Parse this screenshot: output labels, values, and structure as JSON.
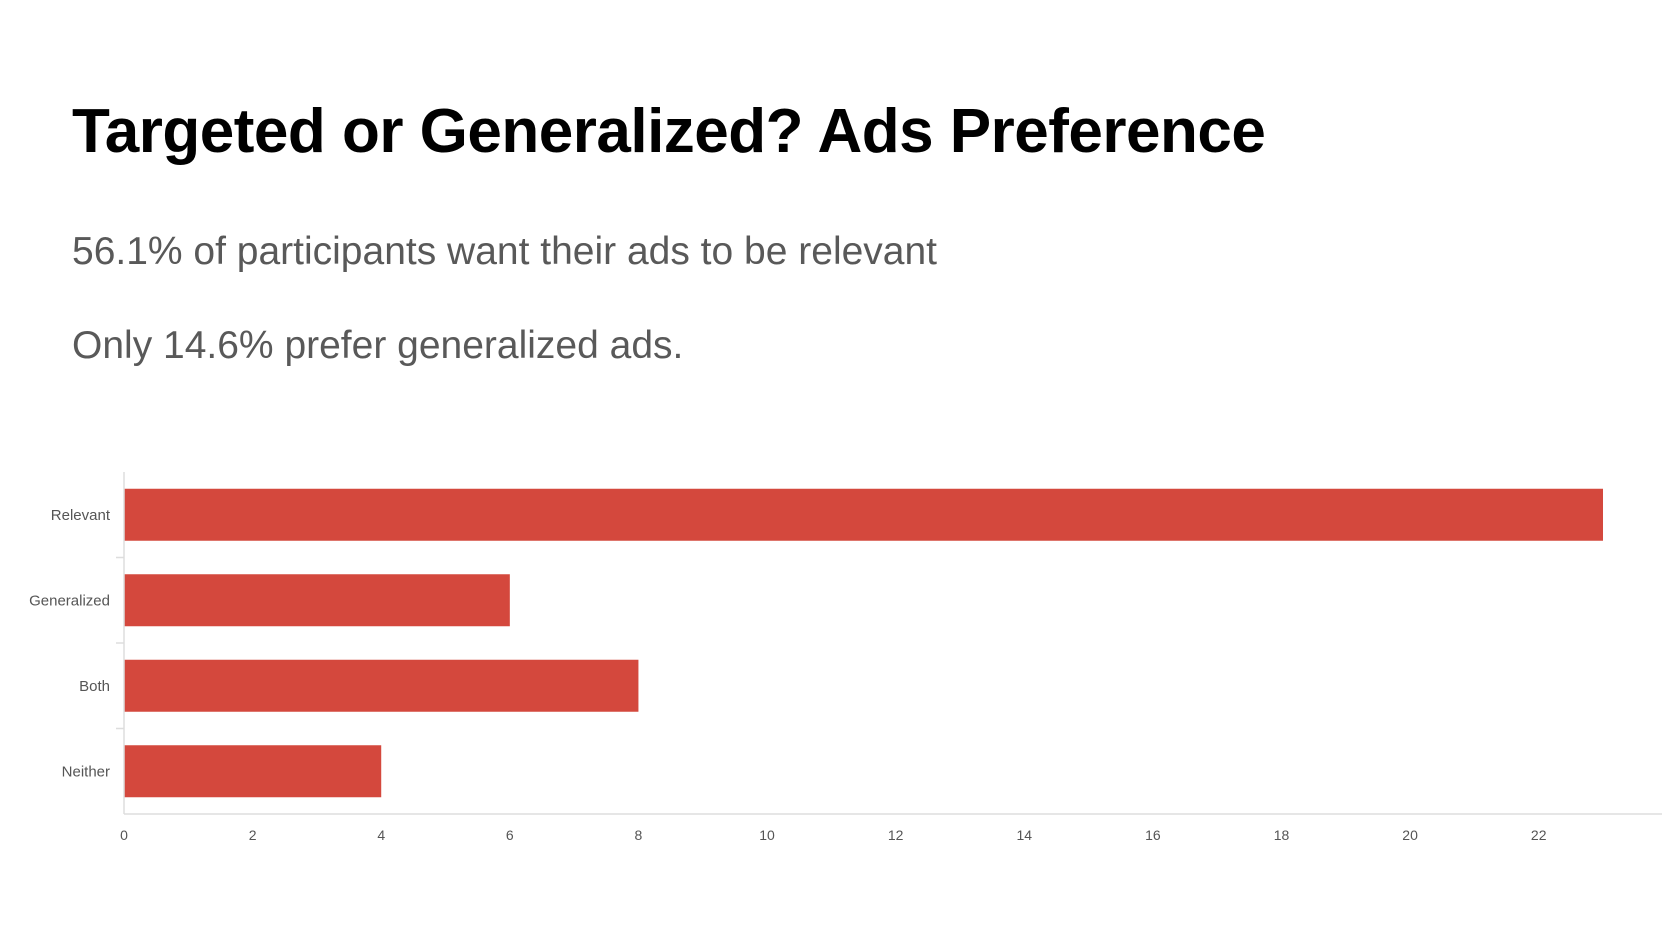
{
  "slide": {
    "title": "Targeted or Generalized? Ads Preference",
    "bullets": [
      "56.1% of participants want their ads to be relevant",
      "Only 14.6% prefer generalized ads."
    ]
  },
  "chart_data": {
    "type": "bar",
    "orientation": "horizontal",
    "categories": [
      "Relevant",
      "Generalized",
      "Both",
      "Neither"
    ],
    "values": [
      23,
      6,
      8,
      4
    ],
    "xlim": [
      0,
      23.5
    ],
    "xticks": [
      0,
      2,
      4,
      6,
      8,
      10,
      12,
      14,
      16,
      18,
      20,
      22
    ],
    "grid": false,
    "bar_color": "#d4483d",
    "axis_color": "#dddddd",
    "label_color": "#555555"
  }
}
